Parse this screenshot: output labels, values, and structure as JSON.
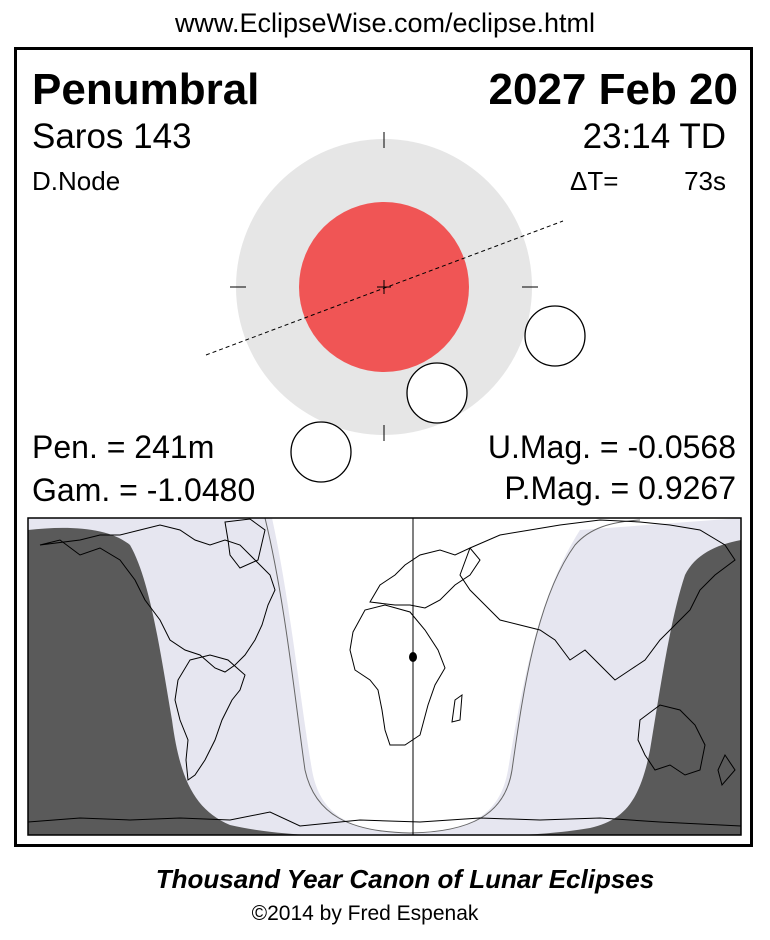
{
  "header_url": "www.EclipseWise.com/eclipse.html",
  "eclipse": {
    "type": "Penumbral",
    "date": "2027 Feb 20",
    "saros": "Saros 143",
    "time": "23:14 TD",
    "node": "D.Node",
    "delta_t_label": "ΔT=",
    "delta_t_value": "73s",
    "pen_duration": "Pen. = 241m",
    "gamma": "Gam. = -1.0480",
    "umbral_mag": "U.Mag. = -0.0568",
    "penumbral_mag": "P.Mag. = 0.9267"
  },
  "colors": {
    "umbra": "#f05555",
    "penumbra": "#e6e6e6",
    "map_night": "#5a5a5a",
    "map_penumbral": "#e6e6f0",
    "map_visible": "#ffffff"
  },
  "footer": {
    "title": "Thousand Year Canon of Lunar Eclipses",
    "copyright": "©2014 by Fred Espenak"
  }
}
